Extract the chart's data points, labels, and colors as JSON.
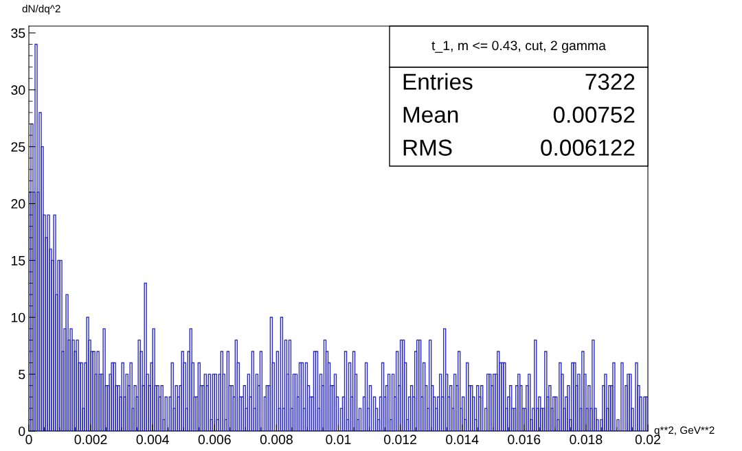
{
  "chart_data": {
    "type": "histogram",
    "title": "t_1, m <= 0.43, cut, 2 gamma",
    "ylabel": "dN/dq^2",
    "xlabel": "q**2, GeV**2",
    "annotations": [
      "Entries",
      "7322",
      "Mean",
      "0.00752",
      "RMS",
      "0.006122"
    ],
    "color": "#2a2ac4",
    "bins": [
      0,
      6.67e-05,
      0.0001333,
      0.0002,
      0.0002667,
      0.0003333,
      0.0004,
      0.0004667,
      0.0005333,
      0.0006,
      0.0006667,
      0.0007333,
      0.0008,
      0.0008667,
      0.0009333,
      0.001,
      0.0010667,
      0.0011333,
      0.0012,
      0.0012667,
      0.0013333,
      0.0014,
      0.0014667,
      0.0015333,
      0.0016,
      0.0016667,
      0.0017333,
      0.0018,
      0.0018667,
      0.0019333,
      0.002,
      0.0020667,
      0.0021333,
      0.0022,
      0.0022667,
      0.0023333,
      0.0024,
      0.0024667,
      0.0025333,
      0.0026,
      0.0026667,
      0.0027333,
      0.0028,
      0.0028667,
      0.0029333,
      0.003,
      0.0030667,
      0.0031333,
      0.0032,
      0.0032667,
      0.0033333,
      0.0034,
      0.0034667,
      0.0035333,
      0.0036,
      0.0036667,
      0.0037333,
      0.0038,
      0.0038667,
      0.0039333,
      0.004,
      0.0040667,
      0.0041333,
      0.0042,
      0.0042667,
      0.0043333,
      0.0044,
      0.0044667,
      0.0045333,
      0.0046,
      0.0046667,
      0.0047333,
      0.0048,
      0.0048667,
      0.0049333,
      0.005,
      0.0050667,
      0.0051333,
      0.0052,
      0.0052667,
      0.0053333,
      0.0054,
      0.0054667,
      0.0055333,
      0.0056,
      0.0056667,
      0.0057333,
      0.0058,
      0.0058667,
      0.0059333,
      0.006,
      0.0060667,
      0.0061333,
      0.0062,
      0.0062667,
      0.0063333,
      0.0064,
      0.0064667,
      0.0065333,
      0.0066,
      0.0066667,
      0.0067333,
      0.0068,
      0.0068667,
      0.0069333,
      0.007,
      0.0070667,
      0.0071333,
      0.0072,
      0.0072667,
      0.0073333,
      0.0074,
      0.0074667,
      0.0075333,
      0.0076,
      0.0076667,
      0.0077333,
      0.0078,
      0.0078667,
      0.0079333,
      0.008,
      0.0080667,
      0.0081333,
      0.0082,
      0.0082667,
      0.0083333,
      0.0084,
      0.0084667,
      0.0085333,
      0.0086,
      0.0086667,
      0.0087333,
      0.0088,
      0.0088667,
      0.0089333,
      0.009,
      0.0090667,
      0.0091333,
      0.0092,
      0.0092667,
      0.0093333,
      0.0094,
      0.0094667,
      0.0095333,
      0.0096,
      0.0096667,
      0.0097333,
      0.0098,
      0.0098667,
      0.0099333,
      0.01,
      0.0100667,
      0.0101333,
      0.0102,
      0.0102667,
      0.0103333,
      0.0104,
      0.0104667,
      0.0105333,
      0.0106,
      0.0106667,
      0.0107333,
      0.0108,
      0.0108667,
      0.0109333,
      0.011,
      0.0110667,
      0.0111333,
      0.0112,
      0.0112667,
      0.0113333,
      0.0114,
      0.0114667,
      0.0115333,
      0.0116,
      0.0116667,
      0.0117333,
      0.0118,
      0.0118667,
      0.0119333,
      0.012,
      0.0120667,
      0.0121333,
      0.0122,
      0.0122667,
      0.0123333,
      0.0124,
      0.0124667,
      0.0125333,
      0.0126,
      0.0126667,
      0.0127333,
      0.0128,
      0.0128667,
      0.0129333,
      0.013,
      0.0130667,
      0.0131333,
      0.0132,
      0.0132667,
      0.0133333,
      0.0134,
      0.0134667,
      0.0135333,
      0.0136,
      0.0136667,
      0.0137333,
      0.0138,
      0.0138667,
      0.0139333,
      0.014,
      0.0140667,
      0.0141333,
      0.0142,
      0.0142667,
      0.0143333,
      0.0144,
      0.0144667,
      0.0145333,
      0.0146,
      0.0146667,
      0.0147333,
      0.0148,
      0.0148667,
      0.0149333,
      0.015,
      0.0150667,
      0.0151333,
      0.0152,
      0.0152667,
      0.0153333,
      0.0154,
      0.0154667,
      0.0155333,
      0.0156,
      0.0156667,
      0.0157333,
      0.0158,
      0.0158667,
      0.0159333,
      0.016,
      0.0160667,
      0.0161333,
      0.0162,
      0.0162667,
      0.0163333,
      0.0164,
      0.0164667,
      0.0165333,
      0.0166,
      0.0166667,
      0.0167333,
      0.0168,
      0.0168667,
      0.0169333,
      0.017,
      0.0170667,
      0.0171333,
      0.0172,
      0.0172667,
      0.0173333,
      0.0174,
      0.0174667,
      0.0175333,
      0.0176,
      0.0176667,
      0.0177333,
      0.0178,
      0.0178667,
      0.0179333,
      0.018,
      0.0180667,
      0.0181333,
      0.0182,
      0.0182667,
      0.0183333,
      0.0184,
      0.0184667,
      0.0185333,
      0.0186,
      0.0186667,
      0.0187333,
      0.0188,
      0.0188667,
      0.0189333,
      0.019,
      0.0190667,
      0.0191333,
      0.0192,
      0.0192667,
      0.0193333,
      0.0194,
      0.0194667,
      0.0195333,
      0.0196,
      0.0196667,
      0.0197333,
      0.0198,
      0.0198667,
      0.0199333,
      0.02
    ],
    "values": [
      21,
      27,
      21,
      34,
      21,
      28,
      25,
      19,
      17,
      19,
      16,
      15,
      19,
      12,
      15,
      15,
      7,
      9,
      12,
      8,
      9,
      8,
      7,
      8,
      6,
      6,
      2,
      6,
      10,
      8,
      7,
      7,
      5,
      7,
      5,
      5,
      9,
      4,
      4,
      5,
      6,
      6,
      4,
      4,
      3,
      6,
      3,
      5,
      4,
      6,
      2,
      4,
      3,
      8,
      7,
      4,
      13,
      5,
      4,
      6,
      9,
      4,
      4,
      3,
      4,
      1,
      3,
      0,
      3,
      6,
      2,
      4,
      3,
      4,
      7,
      6,
      2,
      7,
      9,
      6,
      3,
      3,
      6,
      4,
      4,
      5,
      4,
      5,
      1,
      5,
      5,
      1,
      5,
      7,
      5,
      1,
      7,
      4,
      4,
      3,
      8,
      6,
      3,
      3,
      4,
      2,
      5,
      3,
      7,
      2,
      5,
      4,
      7,
      0,
      3,
      4,
      4,
      10,
      6,
      0,
      7,
      2,
      10,
      2,
      8,
      5,
      8,
      2,
      5,
      5,
      3,
      6,
      6,
      2,
      6,
      4,
      3,
      3,
      7,
      7,
      2,
      5,
      4,
      8,
      7,
      6,
      4,
      4,
      5,
      3,
      0,
      2,
      3,
      7,
      1,
      6,
      3,
      7,
      5,
      1,
      2,
      0,
      3,
      6,
      2,
      4,
      0,
      3,
      2,
      1,
      3,
      6,
      3,
      4,
      5,
      1,
      5,
      3,
      7,
      4,
      8,
      8,
      6,
      1,
      3,
      4,
      3,
      7,
      8,
      8,
      3,
      6,
      4,
      2,
      8,
      4,
      3,
      2,
      3,
      5,
      3,
      9,
      5,
      3,
      4,
      2,
      5,
      4,
      7,
      2,
      3,
      1,
      6,
      4,
      4,
      3,
      1,
      4,
      3,
      4,
      0,
      2,
      5,
      5,
      4,
      5,
      5,
      7,
      6,
      6,
      6,
      2,
      3,
      4,
      2,
      2,
      4,
      5,
      4,
      2,
      2,
      4,
      5,
      1,
      2,
      8,
      2,
      3,
      2,
      2,
      7,
      3,
      4,
      2,
      3,
      3,
      1,
      6,
      5,
      2,
      3,
      4,
      1,
      6,
      6,
      4,
      5,
      2,
      7,
      5,
      2,
      4,
      2,
      8,
      2,
      1,
      0,
      1,
      4,
      5,
      2,
      4,
      4,
      6,
      0,
      1,
      0,
      6,
      0,
      4,
      5,
      5,
      2,
      0,
      6,
      4,
      3,
      0,
      3,
      3
    ],
    "xlim": [
      0,
      0.02
    ],
    "xticks": [
      0,
      0.002,
      0.004,
      0.006,
      0.008,
      0.01,
      0.012,
      0.014,
      0.016,
      0.018,
      0.02
    ],
    "ylim": [
      0,
      35.6
    ],
    "yticks": [
      0,
      5,
      10,
      15,
      20,
      25,
      30,
      35
    ],
    "grid": false,
    "legend": false
  }
}
